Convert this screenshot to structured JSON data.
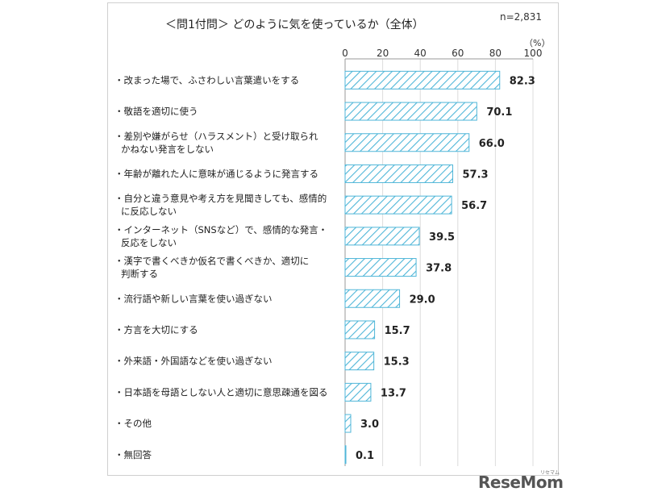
{
  "chart_data": {
    "type": "bar",
    "orientation": "horizontal",
    "title": "＜問1付問＞ どのように気を使っているか（全体）",
    "sample_size": "n=2,831",
    "unit": "（%）",
    "xlim": [
      0,
      100
    ],
    "xticks": [
      "0",
      "20",
      "40",
      "60",
      "80",
      "100"
    ],
    "categories": [
      [
        "・改まった場で、ふさわしい言葉遣いをする"
      ],
      [
        "・敬語を適切に使う"
      ],
      [
        "・差別や嫌がらせ（ハラスメント）と受け取られ",
        "かねない発言をしない"
      ],
      [
        "・年齢が離れた人に意味が通じるように発言する"
      ],
      [
        "・自分と違う意見や考え方を見聞きしても、感情的",
        "に反応しない"
      ],
      [
        "・インターネット（SNSなど）で、感情的な発言・",
        "反応をしない"
      ],
      [
        "・漢字で書くべきか仮名で書くべきか、適切に",
        "判断する"
      ],
      [
        "・流行語や新しい言葉を使い過ぎない"
      ],
      [
        "・方言を大切にする"
      ],
      [
        "・外来語・外国語などを使い過ぎない"
      ],
      [
        "・日本語を母語としない人と適切に意思疎通を図る"
      ],
      [
        "・その他"
      ],
      [
        "・無回答"
      ]
    ],
    "values": [
      82.3,
      70.1,
      66.0,
      57.3,
      56.7,
      39.5,
      37.8,
      29.0,
      15.7,
      15.3,
      13.7,
      3.0,
      0.1
    ],
    "value_labels": [
      "82.3",
      "70.1",
      "66.0",
      "57.3",
      "56.7",
      "39.5",
      "37.8",
      "29.0",
      "15.7",
      "15.3",
      "13.7",
      "3.0",
      "0.1"
    ],
    "bar_color": "#4fb6d8",
    "bar_fill": "diagonal-hatch"
  },
  "watermark": {
    "main": "ReseMom",
    "small": "リセマム"
  }
}
